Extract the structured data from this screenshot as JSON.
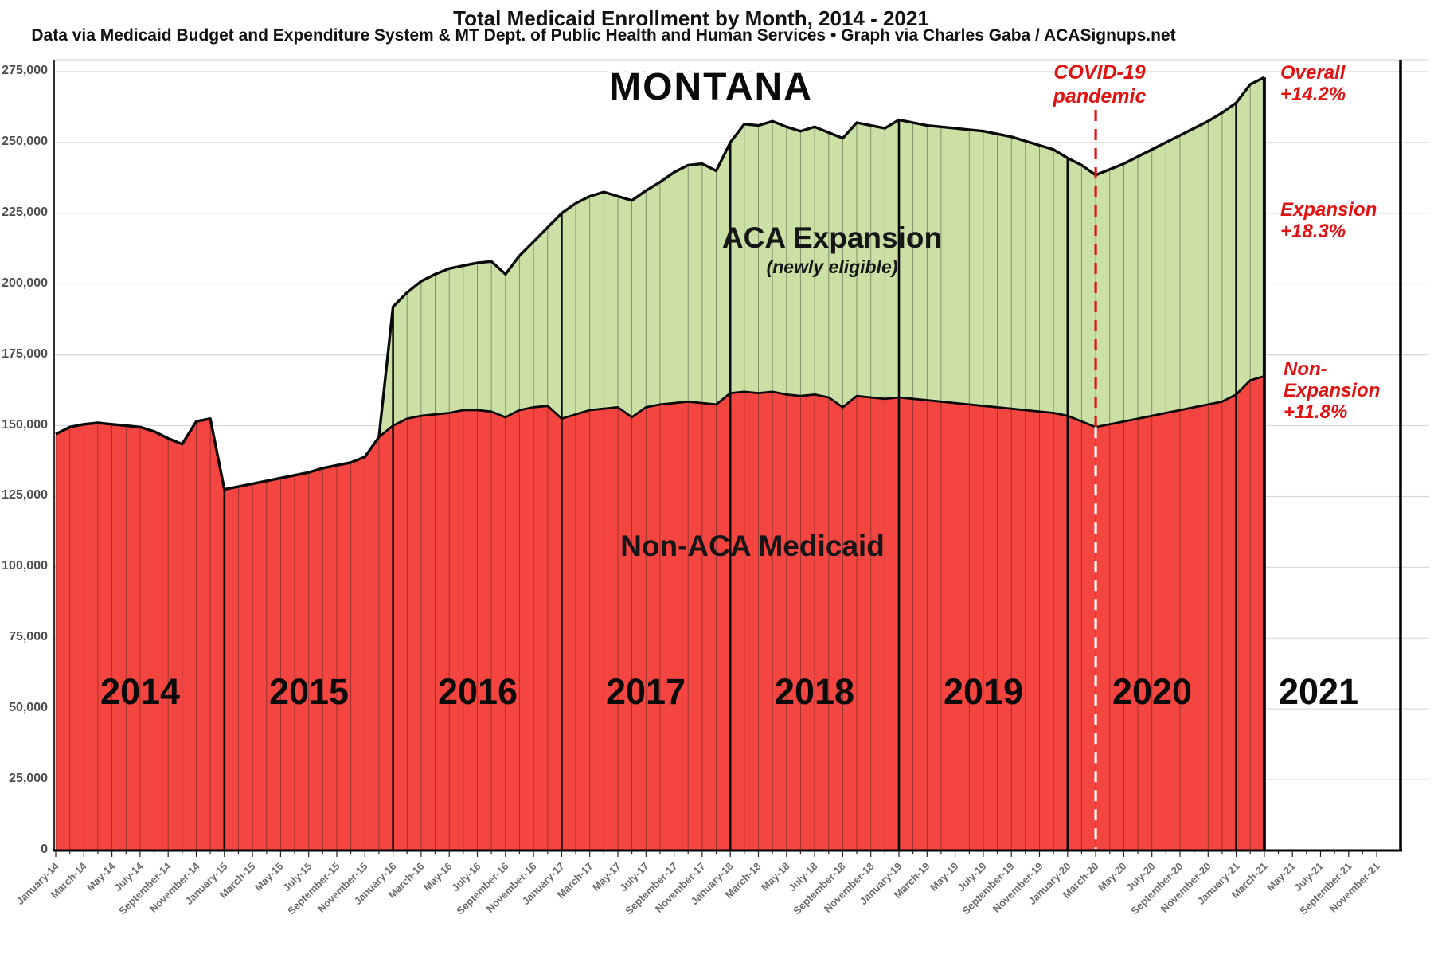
{
  "header": {
    "title": "Total Medicaid Enrollment by Month, 2014 - 2021",
    "subtitle": "Data via Medicaid Budget and Expenditure System & MT Dept. of Public Health and Human Services  •  Graph via Charles Gaba / ACASignups.net"
  },
  "chart": {
    "state_label": "MONTANA",
    "expansion_area_title": "ACA Expansion",
    "expansion_area_subtitle": "(newly eligible)",
    "non_expansion_area_title": "Non-ACA Medicaid",
    "covid_label_line1": "COVID-19",
    "covid_label_line2": "pandemic",
    "annotations": {
      "overall": [
        "Overall",
        "+14.2%"
      ],
      "expansion": [
        "Expansion",
        "+18.3%"
      ],
      "non_expansion": [
        "Non-",
        "Expansion",
        "+11.8%"
      ]
    },
    "year_labels": [
      "2014",
      "2015",
      "2016",
      "2017",
      "2018",
      "2019",
      "2020",
      "2021"
    ],
    "colors": {
      "non_expansion_fill": "#f54540",
      "expansion_fill": "#cbe0a5",
      "line": "#0a0a0a",
      "covid_red": "#e01212",
      "gridline": "#d9d9d9",
      "tick_text": "#4c4c4c"
    }
  },
  "chart_data": {
    "type": "area",
    "stacked": true,
    "title": "Total Medicaid Enrollment by Month, 2014 - 2021",
    "x_start_month": "January-14",
    "x_end_month_of_data": "March-21",
    "x_axis_extends_to": "November-21",
    "x_tick_labels": [
      "January-14",
      "March-14",
      "May-14",
      "July-14",
      "September-14",
      "November-14",
      "January-15",
      "March-15",
      "May-15",
      "July-15",
      "September-15",
      "November-15",
      "January-16",
      "March-16",
      "May-16",
      "July-16",
      "September-16",
      "November-16",
      "January-17",
      "March-17",
      "May-17",
      "July-17",
      "September-17",
      "November-17",
      "January-18",
      "March-18",
      "May-18",
      "July-18",
      "September-18",
      "November-18",
      "January-19",
      "March-19",
      "May-19",
      "July-19",
      "September-19",
      "November-19",
      "January-20",
      "March-20",
      "May-20",
      "July-20",
      "September-20",
      "November-20",
      "January-21",
      "March-21",
      "May-21",
      "July-21",
      "September-21",
      "November-21"
    ],
    "ylim": [
      0,
      275000
    ],
    "y_tick_labels": [
      "0",
      "25,000",
      "50,000",
      "75,000",
      "100,000",
      "125,000",
      "150,000",
      "175,000",
      "200,000",
      "225,000",
      "250,000",
      "275,000"
    ],
    "grid": true,
    "legend_position": "labels-on-areas",
    "series": [
      {
        "name": "Non-ACA Medicaid (non-expansion)",
        "color": "#f54540",
        "values": [
          147000,
          149500,
          150500,
          151000,
          150500,
          150000,
          149500,
          148000,
          145500,
          143500,
          151500,
          152500,
          127500,
          128500,
          129500,
          130500,
          131500,
          132500,
          133500,
          135000,
          136000,
          137000,
          139000,
          146000,
          150000,
          152500,
          153500,
          154000,
          154500,
          155500,
          155500,
          155000,
          153000,
          155500,
          156500,
          157000,
          152500,
          154000,
          155500,
          156000,
          156500,
          153000,
          156500,
          157500,
          158000,
          158500,
          158000,
          157500,
          161500,
          162000,
          161500,
          162000,
          161000,
          160500,
          161000,
          160000,
          156500,
          160500,
          160000,
          159500,
          160000,
          159500,
          159000,
          158500,
          158000,
          157500,
          157000,
          156500,
          156000,
          155500,
          155000,
          154500,
          153500,
          151500,
          149500,
          150500,
          151500,
          152500,
          153500,
          154500,
          155500,
          156500,
          157500,
          158500,
          161000,
          166000,
          167500
        ]
      },
      {
        "name": "Total enrollment (Non-ACA + ACA Expansion; green band = newly eligible)",
        "color": "#cbe0a5",
        "values": [
          147000,
          149500,
          150500,
          151000,
          150500,
          150000,
          149500,
          148000,
          145500,
          143500,
          151500,
          152500,
          127500,
          128500,
          129500,
          130500,
          131500,
          132500,
          133500,
          135000,
          136000,
          137000,
          139000,
          146000,
          192000,
          197000,
          201000,
          203500,
          205500,
          206500,
          207500,
          208000,
          203500,
          210000,
          215000,
          220000,
          225000,
          228500,
          231000,
          232500,
          231000,
          229500,
          233000,
          236000,
          239500,
          242000,
          242500,
          240000,
          250000,
          256500,
          256000,
          257500,
          255500,
          254000,
          255500,
          253500,
          251500,
          257000,
          256000,
          255000,
          258000,
          257000,
          256000,
          255500,
          255000,
          254500,
          254000,
          253000,
          252000,
          250500,
          249000,
          247500,
          244500,
          242000,
          238500,
          240500,
          242500,
          245000,
          247500,
          250000,
          252500,
          255000,
          257500,
          260500,
          264000,
          270500,
          273000
        ]
      }
    ],
    "expansion_start_month": "January-16",
    "event_line": {
      "label": "COVID-19 pandemic",
      "month": "March-20",
      "month_index": 74
    },
    "year_divider_month_indices": [
      12,
      24,
      36,
      48,
      60,
      72,
      84
    ],
    "growth_annotations": {
      "overall": "+14.2%",
      "expansion": "+18.3%",
      "non_expansion": "+11.8%"
    }
  }
}
